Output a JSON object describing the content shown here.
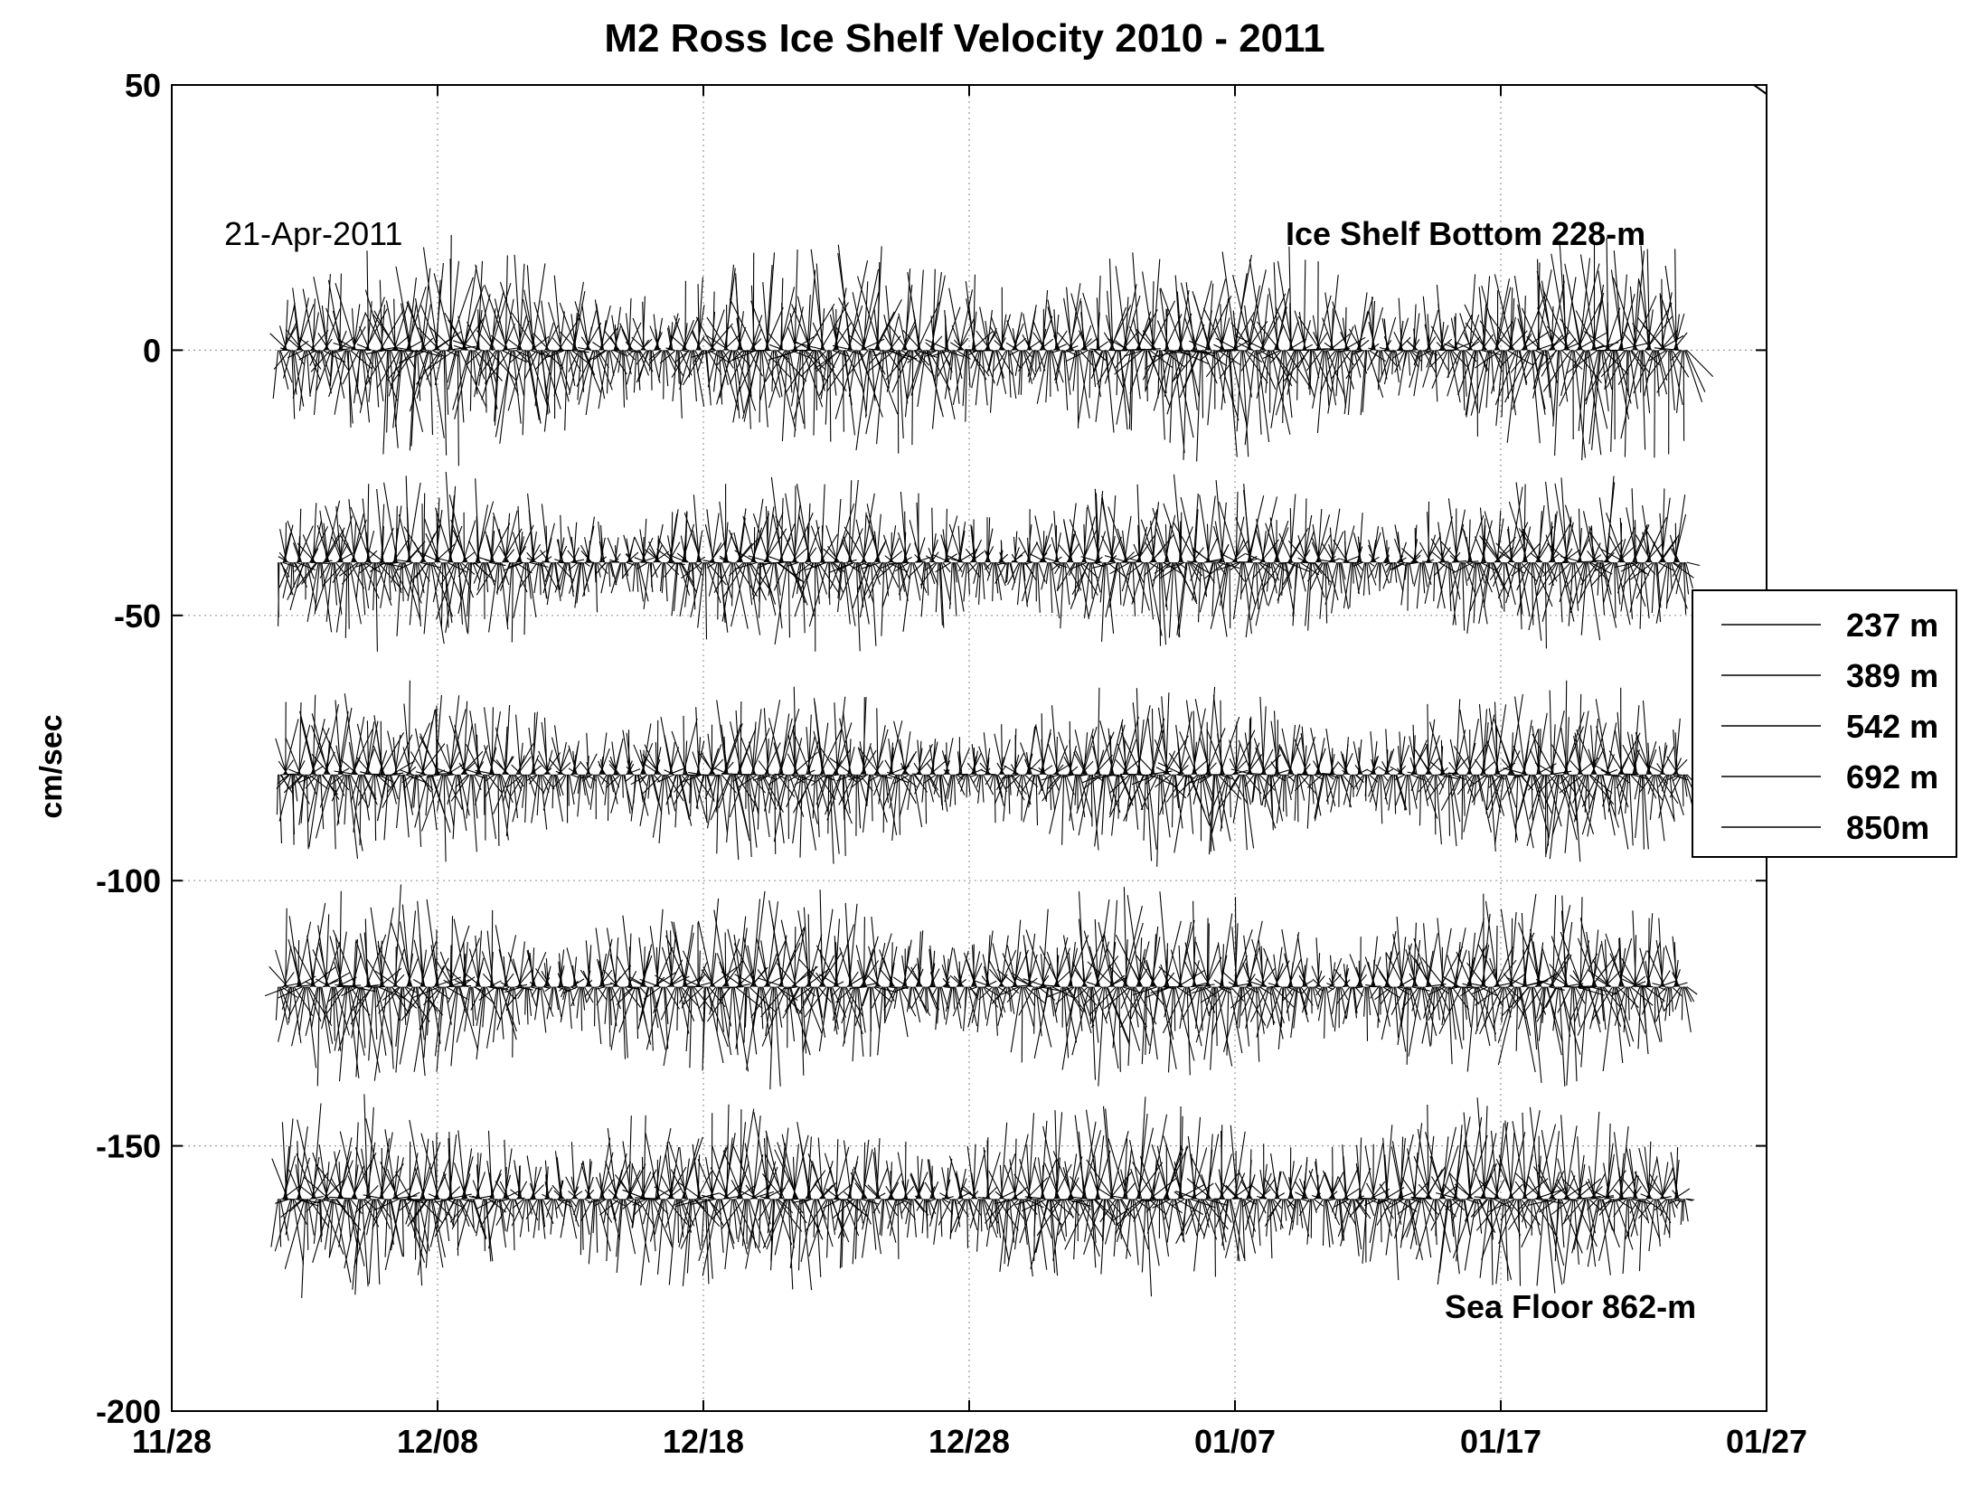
{
  "chart_data": {
    "type": "stick-plot",
    "title": "M2 Ross Ice Shelf Velocity 2010 - 2011",
    "xlabel": "",
    "ylabel": "cm/sec",
    "x_ticks": [
      "11/28",
      "12/08",
      "12/18",
      "12/28",
      "01/07",
      "01/17",
      "01/27"
    ],
    "y_ticks": [
      "50",
      "0",
      "-50",
      "-100",
      "-150",
      "-200"
    ],
    "xlim": [
      "11/28",
      "01/27"
    ],
    "ylim": [
      -200,
      50
    ],
    "grid": true,
    "legend_position": "right, outside plot",
    "annotations": {
      "date_stamp": "21-Apr-2011",
      "top_label": "Ice Shelf Bottom 228-m",
      "bottom_label": "Sea Floor 862-m"
    },
    "series": [
      {
        "name": "237 m",
        "offset": 0,
        "x_start": "12/02",
        "x_end": "01/24",
        "approx_max_speed": 22
      },
      {
        "name": "389 m",
        "offset": -40,
        "x_start": "12/02",
        "x_end": "01/24",
        "approx_max_speed": 18
      },
      {
        "name": "542 m",
        "offset": -80,
        "x_start": "12/02",
        "x_end": "01/24",
        "approx_max_speed": 18
      },
      {
        "name": "692 m",
        "offset": -120,
        "x_start": "12/02",
        "x_end": "01/24",
        "approx_max_speed": 20
      },
      {
        "name": "850m",
        "offset": -160,
        "x_start": "12/02",
        "x_end": "01/24",
        "approx_max_speed": 20
      }
    ],
    "line_color": "#000000",
    "grid_color": "#9a9a9a"
  }
}
